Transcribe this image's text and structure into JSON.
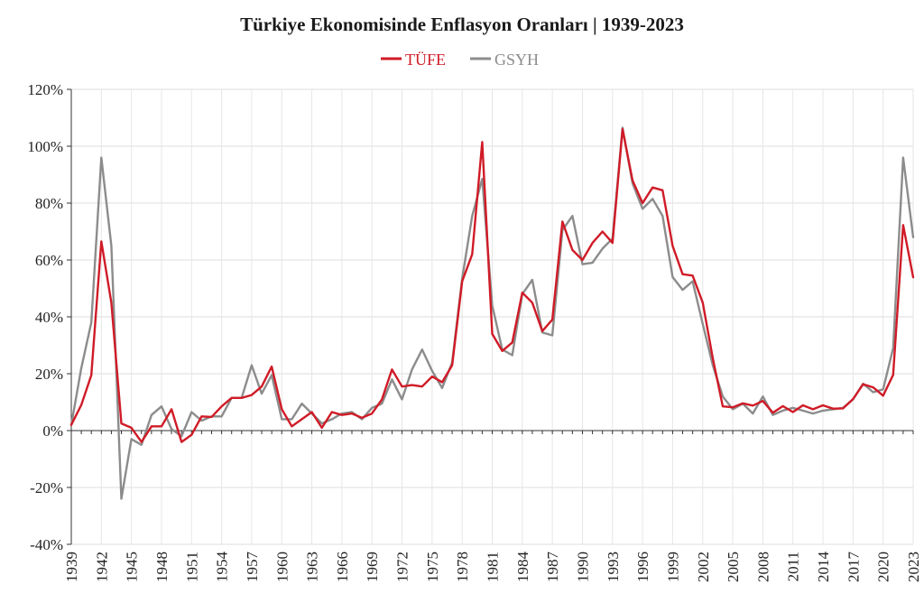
{
  "chart_data": {
    "type": "line",
    "title": "Türkiye Ekonomisinde Enflasyon Oranları  |  1939-2023",
    "xlabel": "",
    "ylabel": "",
    "ylim": [
      -40,
      120
    ],
    "yticks": [
      "-40%",
      "-20%",
      "0%",
      "20%",
      "40%",
      "60%",
      "80%",
      "100%",
      "120%"
    ],
    "ytick_values": [
      -40,
      -20,
      0,
      20,
      40,
      60,
      80,
      100,
      120
    ],
    "xlim": [
      1939,
      2023
    ],
    "xticks": [
      "1939",
      "1942",
      "1945",
      "1948",
      "1951",
      "1954",
      "1957",
      "1960",
      "1963",
      "1966",
      "1969",
      "1972",
      "1975",
      "1978",
      "1981",
      "1984",
      "1987",
      "1990",
      "1993",
      "1996",
      "1999",
      "2002",
      "2005",
      "2008",
      "2011",
      "2014",
      "2017",
      "2020",
      "2023"
    ],
    "grid": true,
    "legend_position": "top-center",
    "x": [
      1939,
      1940,
      1941,
      1942,
      1943,
      1944,
      1945,
      1946,
      1947,
      1948,
      1949,
      1950,
      1951,
      1952,
      1953,
      1954,
      1955,
      1956,
      1957,
      1958,
      1959,
      1960,
      1961,
      1962,
      1963,
      1964,
      1965,
      1966,
      1967,
      1968,
      1969,
      1970,
      1971,
      1972,
      1973,
      1974,
      1975,
      1976,
      1977,
      1978,
      1979,
      1980,
      1981,
      1982,
      1983,
      1984,
      1985,
      1986,
      1987,
      1988,
      1989,
      1990,
      1991,
      1992,
      1993,
      1994,
      1995,
      1996,
      1997,
      1998,
      1999,
      2000,
      2001,
      2002,
      2003,
      2004,
      2005,
      2006,
      2007,
      2008,
      2009,
      2010,
      2011,
      2012,
      2013,
      2014,
      2015,
      2016,
      2017,
      2018,
      2019,
      2020,
      2021,
      2022,
      2023
    ],
    "series": [
      {
        "name": "TÜFE",
        "color": "#d01b27",
        "values": [
          2,
          9,
          19.5,
          66.5,
          45,
          2.5,
          1,
          -4,
          1.5,
          1.5,
          7.5,
          -4,
          -1.5,
          5,
          4.8,
          8.5,
          11.5,
          11.5,
          12.5,
          15.5,
          22.5,
          7.5,
          1.5,
          4,
          6.5,
          1,
          6.5,
          5.5,
          6,
          4.5,
          6,
          11,
          21.5,
          15.5,
          16,
          15.5,
          19,
          17,
          23,
          52.5,
          62,
          101.5,
          34,
          28,
          31,
          48.5,
          45,
          35,
          39,
          73.5,
          63.5,
          60,
          66,
          70,
          66,
          106,
          88,
          80,
          85.5,
          84.5,
          65,
          55,
          54.5,
          45,
          25.5,
          8.5,
          8.2,
          9.6,
          8.8,
          10.4,
          6.3,
          8.6,
          6.5,
          8.9,
          7.5,
          8.9,
          7.7,
          7.8,
          11.1,
          16.3,
          15.2,
          12.3,
          19.6,
          72.3,
          53.9
        ]
      },
      {
        "name": "GSYH",
        "color": "#8c8c8c",
        "values": [
          2,
          22,
          38,
          96,
          65,
          -24,
          -3,
          -5,
          5.5,
          8.5,
          0.5,
          -2,
          6.5,
          3.5,
          5,
          5,
          11.5,
          11.5,
          23,
          13,
          19.5,
          4,
          4,
          9.5,
          6,
          2.5,
          4,
          6,
          6.5,
          4,
          8,
          9.5,
          18,
          11,
          21.5,
          28.5,
          21,
          15,
          24,
          53.5,
          75.5,
          88.5,
          44,
          28.5,
          26.5,
          48,
          53,
          34.5,
          33.5,
          70.5,
          75.5,
          58.5,
          59,
          64,
          67.5,
          106.5,
          87,
          78,
          81.5,
          75.5,
          54,
          49.5,
          52.5,
          37.5,
          23,
          12,
          7.5,
          9.5,
          6,
          12,
          5.5,
          7,
          8,
          7,
          6,
          7,
          7.5,
          8,
          11,
          16.5,
          13.5,
          14.5,
          29,
          96,
          68
        ]
      }
    ]
  }
}
